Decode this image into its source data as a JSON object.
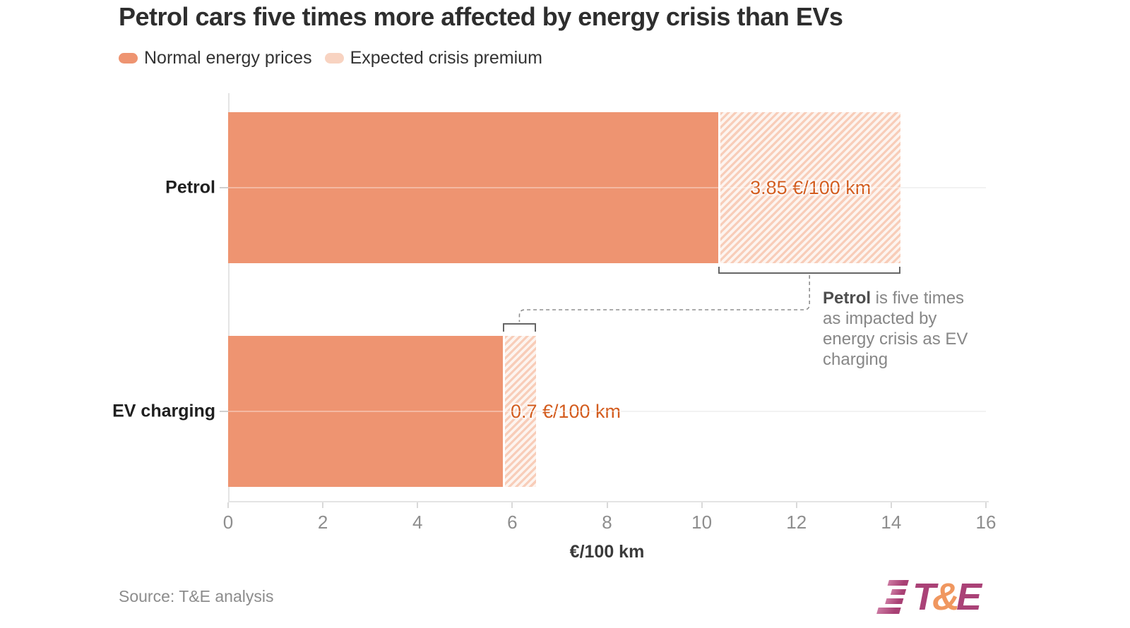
{
  "title": "Petrol cars five times more affected by energy crisis than EVs",
  "legend": [
    {
      "label": "Normal energy prices",
      "color": "#EE9471"
    },
    {
      "label": "Expected crisis premium",
      "color": "#F8D3C1"
    }
  ],
  "chart_data": {
    "type": "bar",
    "orientation": "horizontal",
    "title": "Petrol cars five times more affected by energy crisis than EVs",
    "categories": [
      "Petrol",
      "EV charging"
    ],
    "series": [
      {
        "name": "Normal energy prices",
        "values": [
          10.35,
          5.8
        ]
      },
      {
        "name": "Expected crisis premium",
        "values": [
          3.85,
          0.7
        ]
      }
    ],
    "totals": [
      14.2,
      6.5
    ],
    "premium_labels": [
      "3.85 €/100 km",
      "0.7 €/100 km"
    ],
    "xlabel": "€/100 km",
    "xlim": [
      0,
      16
    ],
    "xticks": [
      0,
      2,
      4,
      6,
      8,
      10,
      12,
      14,
      16
    ],
    "grid": "category gridlines on",
    "legend_position": "top-left",
    "bar_color": "#EE9471",
    "hatch_stripe_color": "#F8CDB9",
    "hatch_bg_color": "#FDF4EF",
    "value_label_color": "#D35C1E"
  },
  "annotation": {
    "bold": "Petrol",
    "line1_rest": " is five times",
    "line2": "as impacted by",
    "line3": "energy crisis as EV",
    "line4": "charging"
  },
  "source": "Source: T&E analysis",
  "logo": {
    "t": "T",
    "amp": "&",
    "e": "E"
  }
}
